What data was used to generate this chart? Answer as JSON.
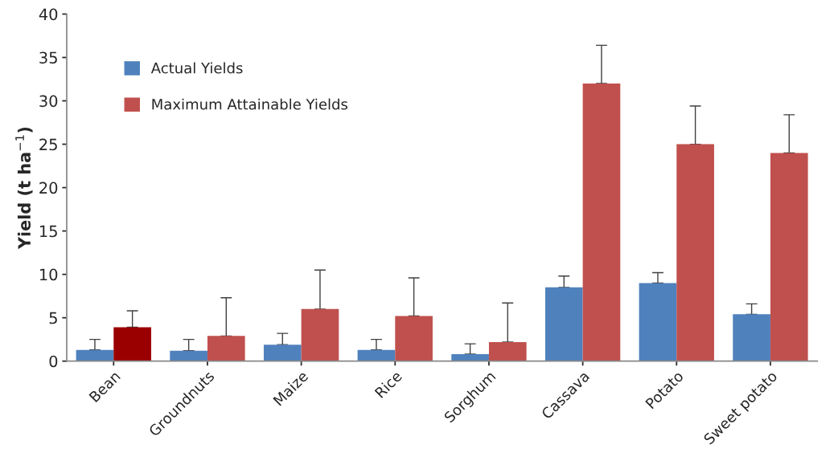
{
  "chart_data": {
    "type": "bar",
    "ylabel": "Yield (t ha$^{−1}$)",
    "categories": [
      "Bean",
      "Groundnuts",
      "Maize",
      "Rice",
      "Sorghum",
      "Cassava",
      "Potato",
      "Sweet potato"
    ],
    "series": [
      {
        "name": "Actual Yields",
        "color": "#4f81bd",
        "values": [
          1.3,
          1.2,
          1.9,
          1.3,
          0.8,
          8.5,
          9.0,
          5.4
        ],
        "errors": [
          [
            1.3,
            2.5
          ],
          [
            1.2,
            2.5
          ],
          [
            1.9,
            3.2
          ],
          [
            1.3,
            2.5
          ],
          [
            0.8,
            2.0
          ],
          [
            8.5,
            9.8
          ],
          [
            9.0,
            10.2
          ],
          [
            5.4,
            6.6
          ]
        ]
      },
      {
        "name": "Maximum Attainable Yields",
        "color": "#c0504d",
        "colors": [
          "#9b0000",
          "#c0504d",
          "#c0504d",
          "#c0504d",
          "#c0504d",
          "#c0504d",
          "#c0504d",
          "#c0504d"
        ],
        "values": [
          3.9,
          2.9,
          6.0,
          5.2,
          2.2,
          32.0,
          25.0,
          24.0
        ],
        "errors": [
          [
            3.9,
            5.8
          ],
          [
            2.9,
            7.3
          ],
          [
            6.0,
            10.5
          ],
          [
            5.2,
            9.6
          ],
          [
            2.2,
            6.7
          ],
          [
            32.0,
            36.4
          ],
          [
            25.0,
            29.4
          ],
          [
            24.0,
            28.4
          ]
        ]
      }
    ],
    "ylim": [
      0,
      40
    ],
    "yticks": [
      0,
      5,
      10,
      15,
      20,
      25,
      30,
      35,
      40
    ],
    "grid": false,
    "legend": "top left"
  }
}
